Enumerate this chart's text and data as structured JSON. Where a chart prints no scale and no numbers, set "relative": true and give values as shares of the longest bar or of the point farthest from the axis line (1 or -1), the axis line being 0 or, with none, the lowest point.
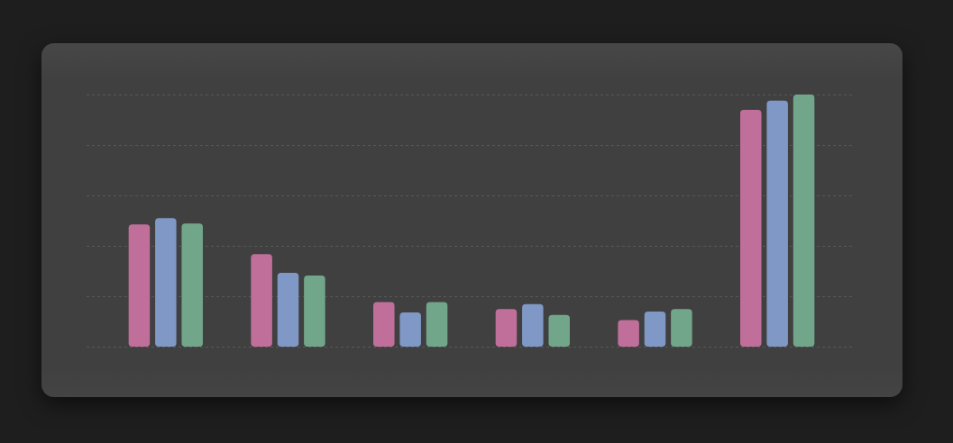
{
  "chart_data": {
    "type": "bar",
    "relative": true,
    "grid": "y",
    "legend": false,
    "tick_labels": false,
    "categories": [
      null,
      null,
      null,
      null,
      null,
      null
    ],
    "series": [
      {
        "color": "#c06f9a",
        "values": [
          0.485,
          0.367,
          0.177,
          0.149,
          0.105,
          0.939
        ]
      },
      {
        "color": "#7f98c6",
        "values": [
          0.51,
          0.293,
          0.136,
          0.169,
          0.139,
          0.976
        ]
      },
      {
        "color": "#72a68a",
        "values": [
          0.488,
          0.282,
          0.177,
          0.126,
          0.149,
          1
        ]
      }
    ]
  }
}
